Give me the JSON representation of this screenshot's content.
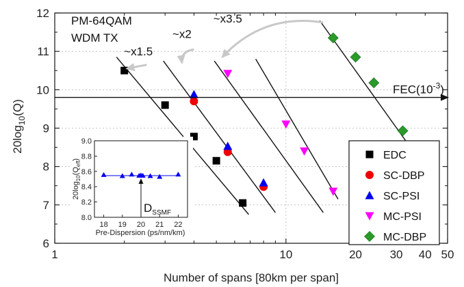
{
  "chart_data": [
    {
      "type": "scatter",
      "xscale": "log",
      "xlim": [
        1,
        50
      ],
      "ylim": [
        6,
        12
      ],
      "xlabel": "Number of spans [80km per span]",
      "ylabel_parts": {
        "base": "20log",
        "sub": "10",
        "tail": "(Q)"
      },
      "xticks": [
        1,
        10,
        20,
        30,
        40,
        50
      ],
      "xtick_labels": [
        "1",
        "10",
        "20",
        "30",
        "40",
        "50"
      ],
      "yticks": [
        6,
        7,
        8,
        9,
        10,
        11,
        12
      ],
      "ytick_labels": [
        "6",
        "7",
        "8",
        "9",
        "10",
        "11",
        "12"
      ],
      "grid": true,
      "legend": "bottom-right",
      "title_lines": [
        "PM-64QAM",
        "WDM TX"
      ],
      "fec": {
        "y": 9.8,
        "label": "FEC(10",
        "exp": "-3",
        "close": ")"
      },
      "annotations": [
        {
          "text": "~x1.5",
          "x": 2.3,
          "y": 10.9
        },
        {
          "text": "~x2",
          "x": 3.55,
          "y": 11.35
        },
        {
          "text": "~x3.5",
          "x": 5.6,
          "y": 11.75
        }
      ],
      "series": [
        {
          "name": "EDC",
          "marker": "square",
          "color": "#000000",
          "points": [
            [
              2.0,
              10.5
            ],
            [
              3.0,
              9.6
            ],
            [
              4.0,
              8.78
            ],
            [
              5.0,
              8.15
            ],
            [
              6.5,
              7.05
            ]
          ]
        },
        {
          "name": "SC-DBP",
          "marker": "circle",
          "color": "#ee0000",
          "points": [
            [
              4.0,
              9.7
            ],
            [
              5.6,
              8.38
            ],
            [
              8.0,
              7.47
            ]
          ]
        },
        {
          "name": "SC-PSI",
          "marker": "triangle-up",
          "color": "#0000ee",
          "points": [
            [
              4.0,
              9.88
            ],
            [
              5.6,
              8.53
            ],
            [
              8.0,
              7.58
            ]
          ]
        },
        {
          "name": "MC-PSI",
          "marker": "triangle-down",
          "color": "#ff00ff",
          "points": [
            [
              5.6,
              10.42
            ],
            [
              10.0,
              9.1
            ],
            [
              12.0,
              8.4
            ],
            [
              16.0,
              7.35
            ]
          ]
        },
        {
          "name": "MC-DBP",
          "marker": "diamond",
          "color": "#2a9a2a",
          "points": [
            [
              16.0,
              11.35
            ],
            [
              20.0,
              10.85
            ],
            [
              24.0,
              10.18
            ],
            [
              32.0,
              8.93
            ]
          ]
        }
      ],
      "fit_lines": [
        [
          [
            1.85,
            10.85
          ],
          [
            6.9,
            6.75
          ]
        ],
        [
          [
            2.95,
            10.75
          ],
          [
            9.0,
            6.8
          ]
        ],
        [
          [
            4.9,
            10.75
          ],
          [
            14.5,
            6.8
          ]
        ],
        [
          [
            7.4,
            10.8
          ],
          [
            16.8,
            7.15
          ]
        ],
        [
          [
            14.0,
            11.8
          ],
          [
            38.0,
            8.15
          ]
        ]
      ]
    },
    {
      "type": "scatter",
      "xlim": [
        17.5,
        22.5
      ],
      "ylim": [
        8.0,
        9.0
      ],
      "xlabel": "Pre-Dispersion (ps/nm/km)",
      "ylabel_parts": {
        "base": "20log",
        "sub": "10",
        "tail": "(Q",
        "sub2": "eff",
        "close": ")"
      },
      "xticks": [
        18,
        19,
        20,
        21,
        22
      ],
      "xtick_labels": [
        "18",
        "19",
        "20",
        "21",
        "22"
      ],
      "yticks": [
        8.0,
        8.2,
        8.4,
        8.6,
        8.8,
        9.0
      ],
      "ytick_labels": [
        "8.0",
        "8.2",
        "8.4",
        "8.6",
        "8.8",
        "9.0"
      ],
      "marker_label": {
        "base": "D",
        "sub": "SSMF",
        "x": 20.0
      },
      "series": [
        {
          "marker": "triangle-up",
          "color": "#0000ee",
          "points": [
            [
              18.0,
              8.555
            ],
            [
              19.0,
              8.54
            ],
            [
              19.5,
              8.56
            ],
            [
              19.9,
              8.545
            ],
            [
              20.0,
              8.55
            ],
            [
              20.1,
              8.545
            ],
            [
              20.5,
              8.54
            ],
            [
              21.0,
              8.53
            ],
            [
              22.0,
              8.56
            ]
          ]
        }
      ],
      "fit_y": 8.545
    }
  ]
}
